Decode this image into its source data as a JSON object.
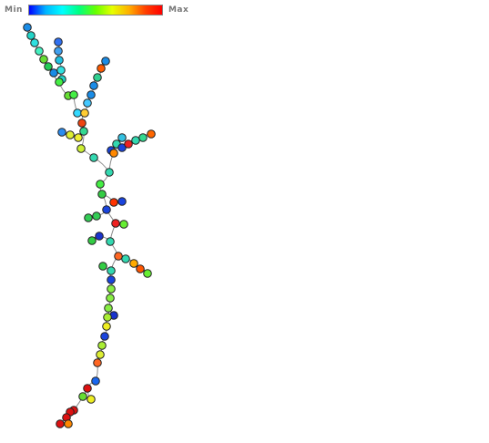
{
  "legend": {
    "min_label": "Min",
    "max_label": "Max",
    "gradient_stops": [
      "#0000ff",
      "#00b4ff",
      "#00ffff",
      "#00ff80",
      "#66ff00",
      "#e6ff00",
      "#ffb000",
      "#ff4000",
      "#ff0000"
    ]
  },
  "tree": {
    "node_fill_colors": [
      "#1a8ce6",
      "#22d4c8",
      "#30e0e0",
      "#44f0c0",
      "#66dd33",
      "#22cc55",
      "#1a8ce6",
      "#3070f0",
      "#40a0f0",
      "#20c0e0",
      "#30e0e0",
      "#22d4c8",
      "#44ee44",
      "#66e033",
      "#44ee44",
      "#1a8ce6",
      "#ff5a00",
      "#30d090",
      "#1a8ce6",
      "#1a8ce6",
      "#44c8ff",
      "#33d9ff",
      "#ffcc33",
      "#ee4411",
      "#33d890",
      "#2a8cf0",
      "#ddee33",
      "#eeee33",
      "#ccee33",
      "#33d8b0",
      "#33c0e0",
      "#33d8b0",
      "#1a44dd",
      "#1a44dd",
      "#ee2222",
      "#33d8b0",
      "#33d890",
      "#ff6600",
      "#ff8800",
      "#33d8b0",
      "#44ee44",
      "#33cc44",
      "#ff3300",
      "#1a44dd",
      "#33cc55",
      "#33cc55",
      "#1a44dd",
      "#ee2222",
      "#66ee33",
      "#33d8b0",
      "#1a33cc",
      "#33cc44",
      "#33cc44",
      "#33d8b0",
      "#ff6622",
      "#33d8b0",
      "#ffaa00",
      "#ff5500",
      "#66ee33",
      "#1a44dd",
      "#88ee44",
      "#88ee44",
      "#88ee44",
      "#1a33cc",
      "#aaee33",
      "#eeee22",
      "#1a44dd",
      "#aaee33",
      "#ddee33",
      "#ff6622",
      "#1a66ee",
      "#dd1111",
      "#66dd33",
      "#eeee22",
      "#dd1111",
      "#dd1111",
      "#dd1111",
      "#ff8800",
      "#dd1111"
    ]
  }
}
